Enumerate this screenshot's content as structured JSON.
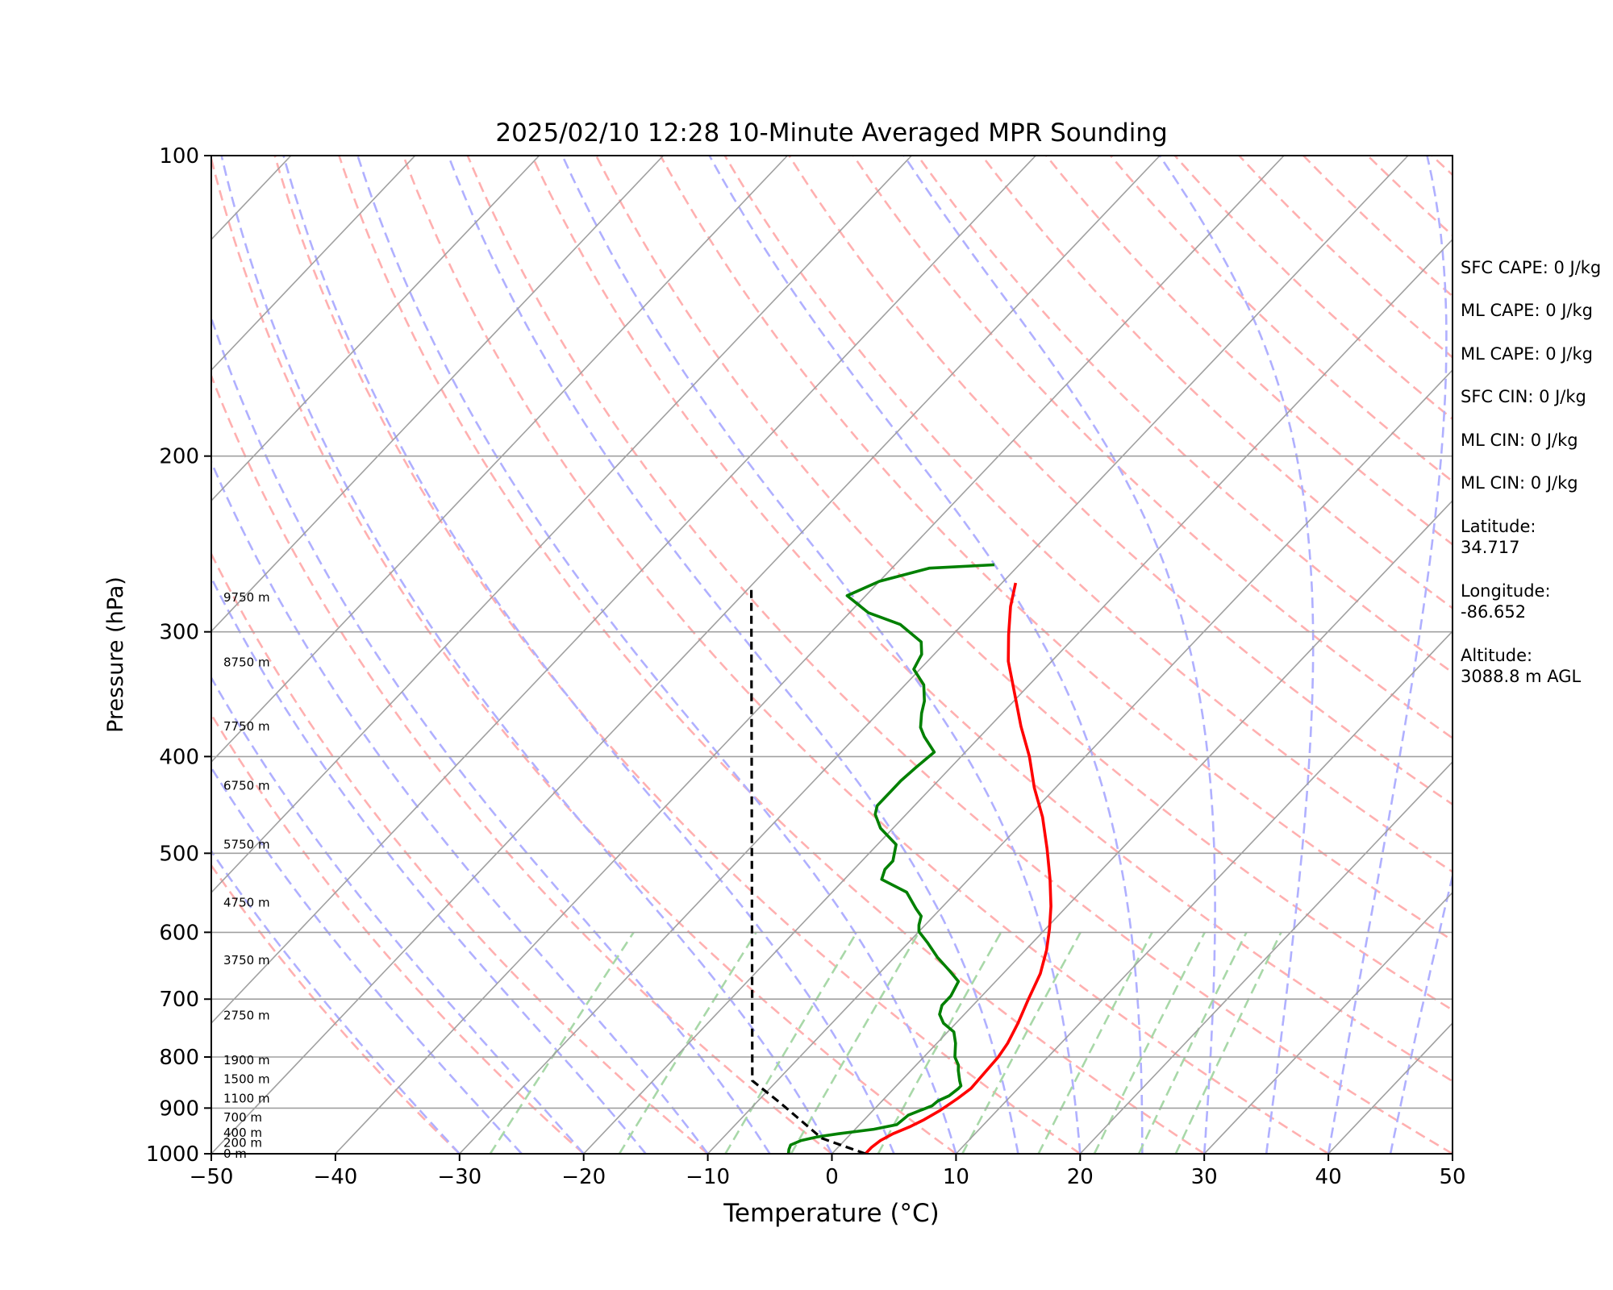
{
  "chart_data": {
    "type": "line",
    "title": "2025/02/10 12:28 10-Minute Averaged MPR Sounding",
    "xlabel": "Temperature (°C)",
    "ylabel": "Pressure (hPa)",
    "xlim": [
      -50,
      50
    ],
    "ylim": [
      1000,
      100
    ],
    "y_scale": "log",
    "x_ticks": [
      -50,
      -40,
      -30,
      -20,
      -10,
      0,
      10,
      20,
      30,
      40,
      50
    ],
    "x_tick_labels": [
      "−50",
      "−40",
      "−30",
      "−20",
      "−10",
      "0",
      "10",
      "20",
      "30",
      "40",
      "50"
    ],
    "y_ticks": [
      100,
      200,
      300,
      400,
      500,
      600,
      700,
      800,
      900,
      1000
    ],
    "y_tick_labels": [
      "100",
      "200",
      "300",
      "400",
      "500",
      "600",
      "700",
      "800",
      "900",
      "1000"
    ],
    "grid": true,
    "colors": {
      "temperature": "#ff0000",
      "dewpoint": "#008000",
      "parcel": "#000000",
      "isotherm": "#a0a0a0",
      "dry_adiabat": "#ffb0b0",
      "moist_adiabat": "#b0b0ff",
      "mixing_ratio": "#a8d8a8"
    },
    "series": [
      {
        "key": "temperature",
        "points": [
          [
            2.7,
            1000
          ],
          [
            2.7,
            985
          ],
          [
            2.9,
            970
          ],
          [
            3.4,
            955
          ],
          [
            4.2,
            940
          ],
          [
            4.8,
            925
          ],
          [
            5.4,
            905
          ],
          [
            5.9,
            880
          ],
          [
            6.2,
            860
          ],
          [
            6.0,
            800
          ],
          [
            5.7,
            775
          ],
          [
            5.0,
            740
          ],
          [
            4.0,
            700
          ],
          [
            3.0,
            660
          ],
          [
            1.7,
            625
          ],
          [
            0.3,
            595
          ],
          [
            -1.3,
            565
          ],
          [
            -3.5,
            530
          ],
          [
            -6.0,
            495
          ],
          [
            -8.8,
            460
          ],
          [
            -11.7,
            430
          ],
          [
            -14.5,
            400
          ],
          [
            -17.5,
            373
          ],
          [
            -20.5,
            346
          ],
          [
            -23.5,
            321
          ],
          [
            -25.5,
            302
          ],
          [
            -27.5,
            283
          ],
          [
            -28.9,
            268
          ]
        ]
      },
      {
        "key": "dewpoint",
        "points": [
          [
            -3.5,
            1000
          ],
          [
            -3.8,
            990
          ],
          [
            -4.0,
            980
          ],
          [
            -3.5,
            970
          ],
          [
            -2.5,
            962
          ],
          [
            -1.0,
            955
          ],
          [
            1.5,
            945
          ],
          [
            3.0,
            935
          ],
          [
            3.2,
            915
          ],
          [
            4.4,
            895
          ],
          [
            4.5,
            885
          ],
          [
            5.0,
            875
          ],
          [
            5.2,
            860
          ],
          [
            5.2,
            855
          ],
          [
            4.7,
            845
          ],
          [
            3.8,
            825
          ],
          [
            3.4,
            815
          ],
          [
            2.5,
            800
          ],
          [
            1.5,
            775
          ],
          [
            0.5,
            755
          ],
          [
            -1.0,
            740
          ],
          [
            -2.0,
            725
          ],
          [
            -2.5,
            710
          ],
          [
            -2.5,
            695
          ],
          [
            -3.0,
            672
          ],
          [
            -4.5,
            656
          ],
          [
            -6.5,
            636
          ],
          [
            -8.5,
            614
          ],
          [
            -10.0,
            599
          ],
          [
            -10.5,
            590
          ],
          [
            -11.0,
            578
          ],
          [
            -12.0,
            568
          ],
          [
            -14.0,
            547
          ],
          [
            -17.0,
            531
          ],
          [
            -17.5,
            519
          ],
          [
            -17.5,
            509
          ],
          [
            -18.5,
            490
          ],
          [
            -21.0,
            472
          ],
          [
            -22.5,
            457
          ],
          [
            -23.0,
            448
          ],
          [
            -23.0,
            434
          ],
          [
            -23.0,
            423
          ],
          [
            -22.8,
            410
          ],
          [
            -22.5,
            396
          ],
          [
            -24.5,
            382
          ],
          [
            -25.5,
            374
          ],
          [
            -26.5,
            362
          ],
          [
            -27.2,
            352
          ],
          [
            -28.5,
            339
          ],
          [
            -30.5,
            327
          ],
          [
            -31.0,
            316
          ],
          [
            -32.0,
            307
          ],
          [
            -35.0,
            295
          ],
          [
            -38.5,
            287
          ],
          [
            -41.5,
            276
          ],
          [
            -40.0,
            267
          ],
          [
            -37.0,
            259
          ],
          [
            -32.0,
            257
          ]
        ]
      },
      {
        "key": "parcel",
        "points": [
          [
            2.7,
            1000
          ],
          [
            -2.0,
            965
          ],
          [
            -8.0,
            890
          ],
          [
            -12.0,
            845
          ],
          [
            -49.7,
            272
          ]
        ]
      }
    ],
    "height_labels": [
      {
        "label": "0 m",
        "p": 1000
      },
      {
        "label": "200 m",
        "p": 975
      },
      {
        "label": "400 m",
        "p": 953
      },
      {
        "label": "700 m",
        "p": 920
      },
      {
        "label": "1100 m",
        "p": 880
      },
      {
        "label": "1500 m",
        "p": 842
      },
      {
        "label": "1900 m",
        "p": 806
      },
      {
        "label": "2750 m",
        "p": 727
      },
      {
        "label": "3750 m",
        "p": 640
      },
      {
        "label": "4750 m",
        "p": 560
      },
      {
        "label": "5750 m",
        "p": 490
      },
      {
        "label": "6750 m",
        "p": 428
      },
      {
        "label": "7750 m",
        "p": 373
      },
      {
        "label": "8750 m",
        "p": 322
      },
      {
        "label": "9750 m",
        "p": 277
      }
    ],
    "annotations": [
      "SFC CAPE: 0 J/kg",
      "ML CAPE: 0 J/kg",
      "ML CAPE: 0 J/kg",
      "SFC CIN: 0 J/kg",
      "ML CIN: 0 J/kg",
      "ML CIN: 0 J/kg",
      "Latitude:\n34.717",
      "Longitude:\n-86.652",
      "Altitude:\n3088.8 m AGL"
    ]
  }
}
